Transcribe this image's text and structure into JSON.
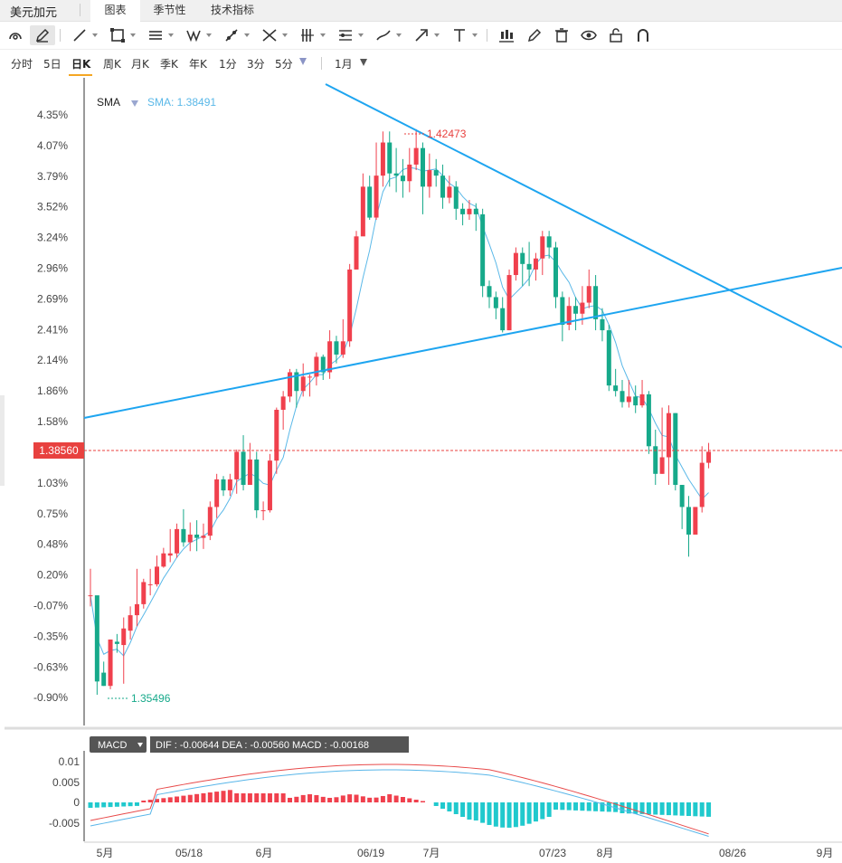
{
  "app_title": "美元加元",
  "tabs": [
    {
      "label": "图表",
      "active": true
    },
    {
      "label": "季节性",
      "active": false
    },
    {
      "label": "技术指标",
      "active": false
    }
  ],
  "tools": [
    "gauge-icon",
    "pencil-icon",
    "line-icon",
    "rectangle-icon",
    "parallel-lines-icon",
    "pattern-icon",
    "ray-icon",
    "fork-icon",
    "fibonacci-icon",
    "gann-icon",
    "brush-icon",
    "arrow-icon",
    "text-icon",
    "bar-style-icon",
    "edit-icon",
    "trash-icon",
    "eye-icon",
    "lock-icon",
    "magnet-icon"
  ],
  "periods": [
    {
      "label": "分时"
    },
    {
      "label": "5日"
    },
    {
      "label": "日K",
      "active": true
    },
    {
      "label": "周K"
    },
    {
      "label": "月K"
    },
    {
      "label": "季K"
    },
    {
      "label": "年K"
    },
    {
      "label": "1分"
    },
    {
      "label": "3分"
    },
    {
      "label": "5分"
    }
  ],
  "range_label": "1月",
  "indicator": {
    "name": "SMA",
    "value_text": "SMA: 1.38491"
  },
  "price_tag": "1.38560",
  "max_label": "1.42473",
  "min_label": "1.35496",
  "macd": {
    "name": "MACD",
    "readout": "DIF : -0.00644   DEA : -0.00560   MACD : -0.00168",
    "y_ticks": [
      "0.01",
      "0.005",
      "0",
      "-0.005"
    ]
  },
  "colors": {
    "up": "#f0404d",
    "down": "#16a98a",
    "trend": "#1ea5f0",
    "sma": "#5ab8e8",
    "dif": "#e84a4a",
    "dea": "#59b6e9",
    "hist_pos": "#f0404d",
    "hist_neg": "#20c9cd",
    "price": "#e8413f"
  },
  "chart_data": {
    "type": "candlestick",
    "y_ticks": [
      "4.35%",
      "4.07%",
      "3.79%",
      "3.52%",
      "3.24%",
      "2.96%",
      "2.69%",
      "2.41%",
      "2.14%",
      "1.86%",
      "1.58%",
      "1.03%",
      "0.75%",
      "0.48%",
      "0.20%",
      "-0.07%",
      "-0.35%",
      "-0.63%",
      "-0.90%"
    ],
    "x_ticks": [
      "5月",
      "05/18",
      "6月",
      "06/19",
      "7月",
      "07/23",
      "8月",
      "08/26",
      "9月"
    ],
    "candles": [
      [
        0.0,
        0.0,
        0.24,
        -0.1
      ],
      [
        0.0,
        -0.78,
        -0.03,
        -0.9
      ],
      [
        -0.7,
        -0.82,
        -0.6,
        -0.82
      ],
      [
        -0.82,
        -0.4,
        -0.4,
        -0.85
      ],
      [
        -0.42,
        -0.44,
        -0.35,
        -0.52
      ],
      [
        -0.45,
        -0.3,
        -0.2,
        -0.8
      ],
      [
        -0.32,
        -0.18,
        -0.1,
        -0.4
      ],
      [
        -0.18,
        -0.08,
        0.24,
        -0.28
      ],
      [
        -0.08,
        0.12,
        0.15,
        -0.12
      ],
      [
        0.1,
        0.1,
        0.24,
        0.0
      ],
      [
        0.1,
        0.26,
        0.36,
        0.08
      ],
      [
        0.26,
        0.38,
        0.43,
        0.25
      ],
      [
        0.36,
        0.38,
        0.6,
        0.3
      ],
      [
        0.38,
        0.6,
        0.65,
        0.34
      ],
      [
        0.6,
        0.48,
        0.78,
        0.44
      ],
      [
        0.48,
        0.55,
        0.66,
        0.4
      ],
      [
        0.55,
        0.52,
        0.68,
        0.4
      ],
      [
        0.52,
        0.54,
        0.65,
        0.42
      ],
      [
        0.54,
        0.8,
        0.85,
        0.5
      ],
      [
        0.8,
        1.05,
        1.1,
        0.7
      ],
      [
        1.05,
        0.95,
        1.08,
        0.9
      ],
      [
        0.95,
        1.05,
        1.1,
        0.9
      ],
      [
        1.05,
        1.3,
        1.32,
        0.92
      ],
      [
        1.3,
        1.0,
        1.45,
        0.95
      ],
      [
        1.0,
        1.23,
        1.38,
        1.0
      ],
      [
        1.23,
        0.77,
        1.3,
        0.7
      ],
      [
        0.77,
        0.77,
        0.85,
        0.68
      ],
      [
        0.77,
        1.22,
        1.28,
        0.75
      ],
      [
        1.22,
        1.68,
        1.7,
        1.1
      ],
      [
        1.68,
        1.8,
        1.85,
        1.5
      ],
      [
        1.8,
        2.02,
        2.05,
        1.75
      ],
      [
        2.02,
        1.85,
        2.05,
        1.7
      ],
      [
        1.85,
        1.98,
        2.1,
        1.8
      ],
      [
        1.98,
        1.98,
        2.0,
        1.8
      ],
      [
        1.98,
        2.16,
        2.2,
        1.9
      ],
      [
        2.16,
        2.02,
        2.18,
        1.95
      ],
      [
        2.02,
        2.3,
        2.4,
        1.96
      ],
      [
        2.3,
        2.18,
        2.35,
        2.1
      ],
      [
        2.18,
        2.3,
        2.5,
        2.15
      ],
      [
        2.3,
        2.95,
        3.0,
        2.25
      ],
      [
        2.95,
        3.25,
        3.3,
        2.95
      ],
      [
        3.25,
        3.7,
        3.82,
        3.3
      ],
      [
        3.7,
        3.42,
        3.8,
        3.4
      ],
      [
        3.42,
        3.8,
        4.1,
        3.4
      ],
      [
        3.8,
        4.1,
        4.2,
        3.7
      ],
      [
        4.1,
        3.82,
        4.2,
        3.7
      ],
      [
        3.82,
        3.8,
        4.05,
        3.65
      ],
      [
        3.8,
        3.75,
        3.95,
        3.6
      ],
      [
        3.75,
        3.9,
        4.05,
        3.65
      ],
      [
        3.9,
        4.05,
        4.22,
        3.85
      ],
      [
        4.05,
        3.7,
        4.1,
        3.45
      ],
      [
        3.7,
        3.85,
        4.0,
        3.6
      ],
      [
        3.85,
        3.8,
        3.95,
        3.7
      ],
      [
        3.8,
        3.6,
        3.9,
        3.5
      ],
      [
        3.6,
        3.7,
        3.8,
        3.55
      ],
      [
        3.7,
        3.5,
        3.75,
        3.4
      ],
      [
        3.5,
        3.45,
        3.55,
        3.35
      ],
      [
        3.45,
        3.5,
        3.58,
        3.4
      ],
      [
        3.5,
        3.45,
        3.55,
        3.3
      ],
      [
        3.45,
        2.8,
        3.5,
        2.7
      ],
      [
        2.8,
        2.7,
        2.85,
        2.6
      ],
      [
        2.7,
        2.6,
        2.75,
        2.5
      ],
      [
        2.6,
        2.4,
        2.7,
        2.38
      ],
      [
        2.4,
        2.9,
        2.95,
        2.4
      ],
      [
        2.9,
        3.1,
        3.15,
        2.85
      ],
      [
        3.1,
        3.0,
        3.15,
        2.8
      ],
      [
        3.0,
        2.95,
        3.2,
        2.8
      ],
      [
        2.95,
        3.05,
        3.1,
        2.85
      ],
      [
        3.05,
        3.25,
        3.3,
        2.9
      ],
      [
        3.25,
        3.15,
        3.3,
        3.05
      ],
      [
        3.15,
        2.7,
        3.2,
        2.6
      ],
      [
        2.7,
        2.45,
        2.75,
        2.3
      ],
      [
        2.45,
        2.62,
        2.7,
        2.4
      ],
      [
        2.62,
        2.55,
        2.7,
        2.4
      ],
      [
        2.55,
        2.65,
        2.8,
        2.45
      ],
      [
        2.65,
        2.8,
        2.95,
        2.6
      ],
      [
        2.8,
        2.5,
        2.9,
        2.4
      ],
      [
        2.5,
        2.4,
        2.6,
        2.3
      ],
      [
        2.4,
        1.9,
        2.45,
        1.85
      ],
      [
        1.9,
        1.85,
        2.05,
        1.8
      ],
      [
        1.85,
        1.75,
        1.95,
        1.7
      ],
      [
        1.75,
        1.8,
        1.95,
        1.7
      ],
      [
        1.8,
        1.72,
        1.9,
        1.65
      ],
      [
        1.72,
        1.82,
        1.95,
        1.7
      ],
      [
        1.82,
        1.35,
        1.85,
        1.28
      ],
      [
        1.35,
        1.1,
        1.5,
        1.0
      ],
      [
        1.1,
        1.25,
        1.7,
        1.1
      ],
      [
        1.25,
        1.65,
        1.72,
        1.0
      ],
      [
        1.65,
        1.0,
        1.65,
        0.95
      ],
      [
        1.0,
        0.8,
        1.0,
        0.6
      ],
      [
        0.8,
        0.55,
        0.9,
        0.35
      ],
      [
        0.55,
        0.8,
        0.8,
        0.7
      ],
      [
        0.8,
        1.2,
        1.35,
        0.75
      ],
      [
        1.2,
        1.3,
        1.38,
        1.15
      ]
    ],
    "y_range": [
      -1.0,
      4.6
    ]
  }
}
